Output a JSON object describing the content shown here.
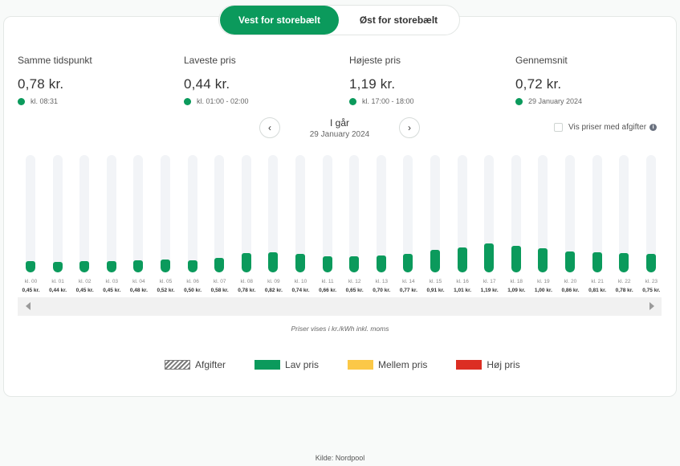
{
  "region_tabs": {
    "active": "Vest for storebælt",
    "inactive": "Øst for storebælt"
  },
  "stats": [
    {
      "label": "Samme tidspunkt",
      "value": "0,78 kr.",
      "sub": "kl. 08:31"
    },
    {
      "label": "Laveste pris",
      "value": "0,44 kr.",
      "sub": "kl. 01:00 - 02:00"
    },
    {
      "label": "Højeste pris",
      "value": "1,19 kr.",
      "sub": "kl. 17:00 - 18:00"
    },
    {
      "label": "Gennemsnit",
      "value": "0,72 kr.",
      "sub": "29 January 2024"
    }
  ],
  "date_nav": {
    "day": "I går",
    "date": "29 January 2024",
    "prev_glyph": "‹",
    "next_glyph": "›"
  },
  "fees_toggle": {
    "label": "Vis priser med afgifter",
    "info": "i",
    "checked": false
  },
  "chart_data": {
    "type": "bar",
    "categories": [
      "kl. 00",
      "kl. 01",
      "kl. 02",
      "kl. 03",
      "kl. 04",
      "kl. 05",
      "kl. 06",
      "kl. 07",
      "kl. 08",
      "kl. 09",
      "kl. 10",
      "kl. 11",
      "kl. 12",
      "kl. 13",
      "kl. 14",
      "kl. 15",
      "kl. 16",
      "kl. 17",
      "kl. 18",
      "kl. 19",
      "kl. 20",
      "kl. 21",
      "kl. 22",
      "kl. 23"
    ],
    "values": [
      0.45,
      0.44,
      0.45,
      0.45,
      0.48,
      0.52,
      0.5,
      0.58,
      0.78,
      0.82,
      0.74,
      0.66,
      0.65,
      0.7,
      0.77,
      0.91,
      1.01,
      1.19,
      1.09,
      1.0,
      0.86,
      0.81,
      0.78,
      0.75
    ],
    "value_labels": [
      "0,45 kr.",
      "0,44 kr.",
      "0,45 kr.",
      "0,45 kr.",
      "0,48 kr.",
      "0,52 kr.",
      "0,50 kr.",
      "0,58 kr.",
      "0,78 kr.",
      "0,82 kr.",
      "0,74 kr.",
      "0,66 kr.",
      "0,65 kr.",
      "0,70 kr.",
      "0,77 kr.",
      "0,91 kr.",
      "1,01 kr.",
      "1,19 kr.",
      "1,09 kr.",
      "1,00 kr.",
      "0,86 kr.",
      "0,81 kr.",
      "0,78 kr.",
      "0,75 kr."
    ],
    "ylim": [
      0,
      4.8
    ],
    "bar_color": "#0b9a5c",
    "track_color": "#f2f4f7",
    "grid": false
  },
  "unit_note": "Priser vises i kr./kWh inkl. moms",
  "legend": [
    {
      "label": "Afgifter",
      "color": "hatch"
    },
    {
      "label": "Lav pris",
      "color": "#0b9a5c"
    },
    {
      "label": "Mellem pris",
      "color": "#fbc847"
    },
    {
      "label": "Høj pris",
      "color": "#dc2e23"
    }
  ],
  "source": "Kilde: Nordpool"
}
